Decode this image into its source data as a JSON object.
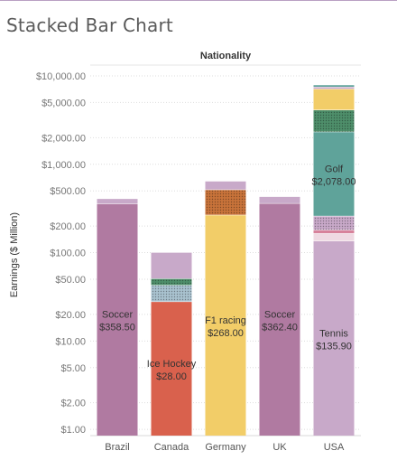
{
  "chart_title": "Stacked Bar Chart",
  "chart_data": {
    "type": "bar",
    "stacked": true,
    "title": "Stacked Bar Chart",
    "column_header": "Nationality",
    "xlabel": "",
    "ylabel": "Earnings ($ Million)",
    "yscale": "log",
    "ylim": [
      0.85,
      10000
    ],
    "grid": true,
    "y_ticks": [
      {
        "value": 10000,
        "label": "$10,000.00"
      },
      {
        "value": 5000,
        "label": "$5,000.00"
      },
      {
        "value": 2000,
        "label": "$2,000.00"
      },
      {
        "value": 1000,
        "label": "$1,000.00"
      },
      {
        "value": 500,
        "label": "$500.00"
      },
      {
        "value": 200,
        "label": "$200.00"
      },
      {
        "value": 100,
        "label": "$100.00"
      },
      {
        "value": 50,
        "label": "$50.00"
      },
      {
        "value": 20,
        "label": "$20.00"
      },
      {
        "value": 10,
        "label": "$10.00"
      },
      {
        "value": 5,
        "label": "$5.00"
      },
      {
        "value": 2,
        "label": "$2.00"
      },
      {
        "value": 1,
        "label": "$1.00"
      }
    ],
    "categories": [
      "Brazil",
      "Canada",
      "Germany",
      "UK",
      "USA"
    ],
    "bars": [
      {
        "category": "Brazil",
        "segments": [
          {
            "value": 358.5,
            "color": "#b07aa1",
            "sport": "Soccer",
            "value_label": "$358.50"
          },
          {
            "value": 52,
            "color": "#c8a9c9"
          }
        ]
      },
      {
        "category": "Canada",
        "segments": [
          {
            "value": 28.0,
            "color": "#d9614d",
            "sport": "Ice Hockey",
            "value_label": "$28.00"
          },
          {
            "value": 15,
            "color": "#a9c2cf",
            "pattern": "dots"
          },
          {
            "value": 8,
            "color": "#4e8e6a",
            "pattern": "dots"
          },
          {
            "value": 50,
            "color": "#c8a9c9"
          }
        ]
      },
      {
        "category": "Germany",
        "segments": [
          {
            "value": 268.0,
            "color": "#f2cd68",
            "sport": "F1 racing",
            "value_label": "$268.00"
          },
          {
            "value": 250,
            "color": "#c8733a",
            "pattern": "dots"
          },
          {
            "value": 130,
            "color": "#c8a9c9"
          }
        ]
      },
      {
        "category": "UK",
        "segments": [
          {
            "value": 362.4,
            "color": "#b07aa1",
            "sport": "Soccer",
            "value_label": "$362.40"
          },
          {
            "value": 70,
            "color": "#c8a9c9"
          }
        ]
      },
      {
        "category": "USA",
        "segments": [
          {
            "value": 135.9,
            "color": "#c8a9c9",
            "sport": "Tennis",
            "value_label": "$135.90"
          },
          {
            "value": 30,
            "color": "#efd9e2"
          },
          {
            "value": 15,
            "color": "#d7829b"
          },
          {
            "value": 80,
            "color": "#c8a9c9",
            "pattern": "dots"
          },
          {
            "value": 2078.0,
            "color": "#5fa39a",
            "sport": "Golf",
            "value_label": "$2,078.00"
          },
          {
            "value": 1800,
            "color": "#4e8e6a",
            "pattern": "dots"
          },
          {
            "value": 3000,
            "color": "#f2cd68"
          },
          {
            "value": 400,
            "color": "#c8a9c9"
          },
          {
            "value": 400,
            "color": "#5fa39a"
          }
        ]
      }
    ]
  }
}
